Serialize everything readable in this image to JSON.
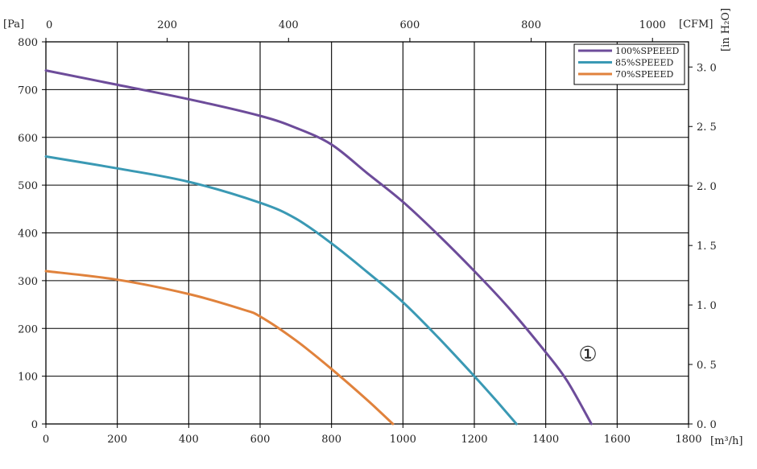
{
  "chart_data": {
    "type": "line",
    "title": "",
    "x_unit_label": "[m³/h]",
    "y_unit_label": "[Pa]",
    "top_unit_label": "[CFM]",
    "right_unit_label": "[in H₂O]",
    "xlim": [
      0,
      1800
    ],
    "ylim": [
      0,
      800
    ],
    "x_ticks": [
      0,
      200,
      400,
      600,
      800,
      1000,
      1200,
      1400,
      1600,
      1800
    ],
    "x_tick_labels": [
      "0",
      "200",
      "400",
      "600",
      "800",
      "1000",
      "1200",
      "1400",
      "1600",
      "1800"
    ],
    "y_ticks": [
      0,
      100,
      200,
      300,
      400,
      500,
      600,
      700,
      800
    ],
    "y_tick_labels": [
      "0",
      "100",
      "200",
      "300",
      "400",
      "500",
      "600",
      "700",
      "800"
    ],
    "top_ticks_cfm": [
      0,
      200,
      400,
      600,
      800,
      1000
    ],
    "top_tick_labels": [
      "0",
      "200",
      "400",
      "600",
      "800",
      "1000"
    ],
    "right_ticks_inh2o": [
      0.0,
      0.5,
      1.0,
      1.5,
      2.0,
      2.5,
      3.0
    ],
    "right_tick_labels": [
      "0. 0",
      "0. 5",
      "1. 0",
      "1. 5",
      "2. 0",
      "2. 5",
      "3. 0"
    ],
    "grid": true,
    "legend_position": "top-right",
    "annotation": "①",
    "series": [
      {
        "name": "100%SPEEED",
        "color": "#6d4c9a",
        "points": [
          [
            0,
            740
          ],
          [
            200,
            710
          ],
          [
            400,
            680
          ],
          [
            600,
            645
          ],
          [
            700,
            620
          ],
          [
            800,
            585
          ],
          [
            900,
            525
          ],
          [
            1000,
            465
          ],
          [
            1100,
            395
          ],
          [
            1200,
            320
          ],
          [
            1300,
            240
          ],
          [
            1400,
            150
          ],
          [
            1460,
            90
          ],
          [
            1528,
            0
          ]
        ]
      },
      {
        "name": "85%SPEEED",
        "color": "#3a99b4",
        "points": [
          [
            0,
            560
          ],
          [
            200,
            535
          ],
          [
            400,
            507
          ],
          [
            600,
            463
          ],
          [
            700,
            430
          ],
          [
            800,
            378
          ],
          [
            900,
            318
          ],
          [
            1000,
            255
          ],
          [
            1100,
            180
          ],
          [
            1200,
            100
          ],
          [
            1260,
            50
          ],
          [
            1318,
            0
          ]
        ]
      },
      {
        "name": "70%SPEEED",
        "color": "#e0823c",
        "points": [
          [
            0,
            320
          ],
          [
            200,
            302
          ],
          [
            400,
            272
          ],
          [
            550,
            240
          ],
          [
            600,
            225
          ],
          [
            700,
            175
          ],
          [
            800,
            115
          ],
          [
            900,
            50
          ],
          [
            972,
            0
          ]
        ]
      }
    ]
  }
}
